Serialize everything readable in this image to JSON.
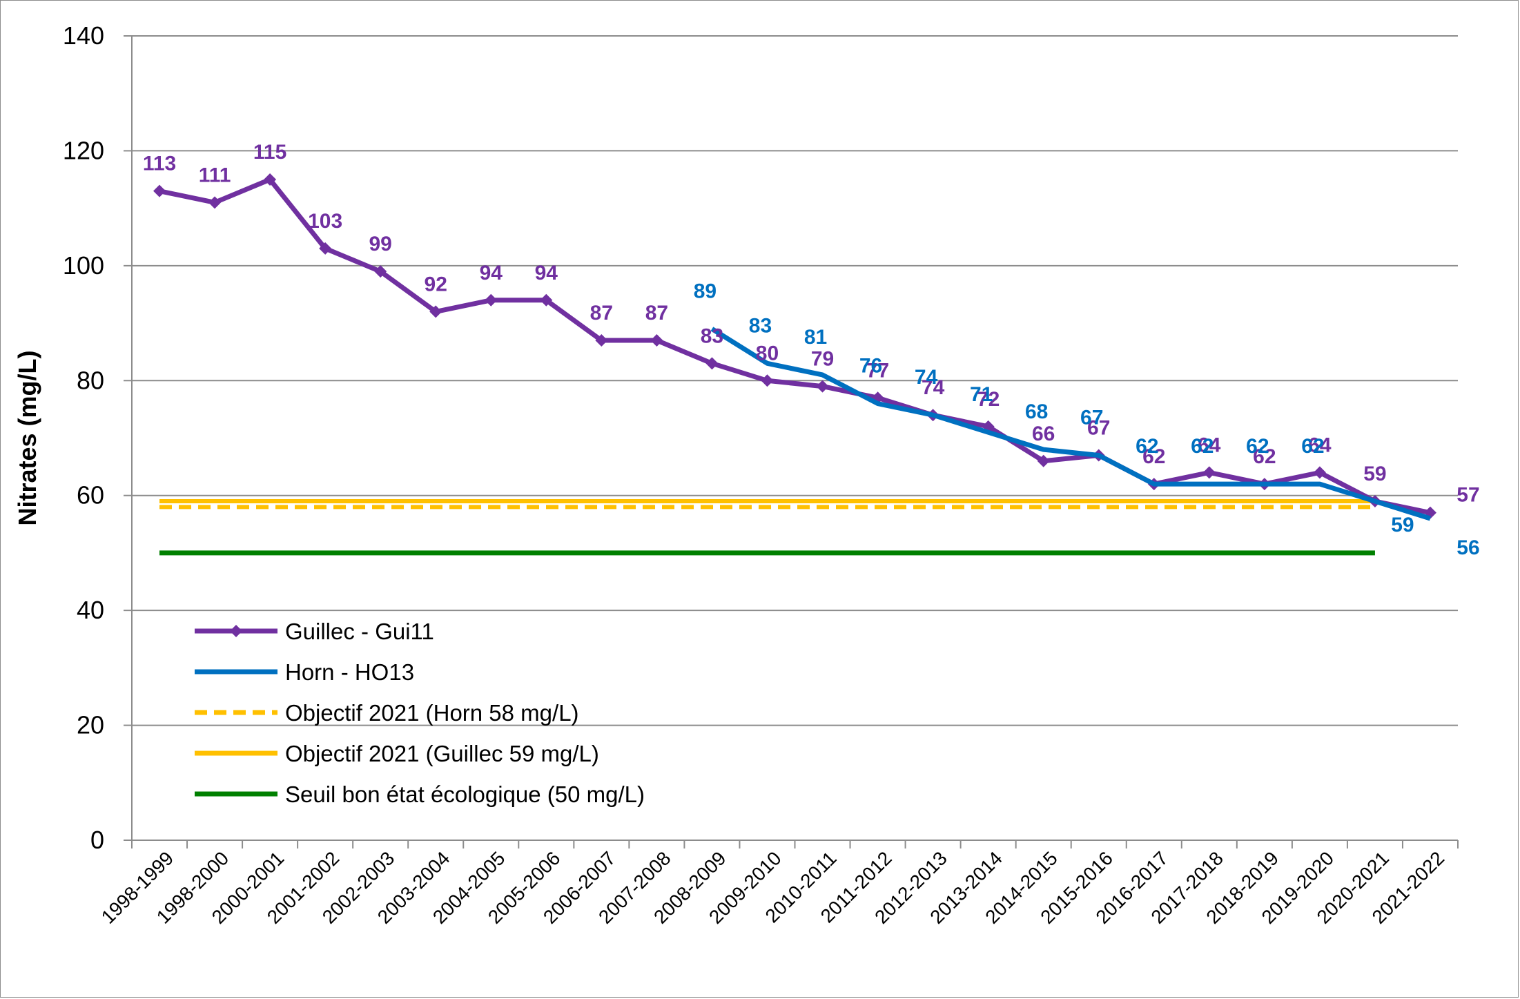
{
  "chart_data": {
    "type": "line",
    "ylabel": "Nitrates (mg/L)",
    "xlabel": "",
    "ylim": [
      0,
      140
    ],
    "yticks": [
      0,
      20,
      40,
      60,
      80,
      100,
      120,
      140
    ],
    "grid": true,
    "legend_position": "bottom-left",
    "categories": [
      "1998-1999",
      "1998-2000",
      "2000-2001",
      "2001-2002",
      "2002-2003",
      "2003-2004",
      "2004-2005",
      "2005-2006",
      "2006-2007",
      "2007-2008",
      "2008-2009",
      "2009-2010",
      "2010-2011",
      "2011-2012",
      "2012-2013",
      "2013-2014",
      "2014-2015",
      "2015-2016",
      "2016-2017",
      "2017-2018",
      "2018-2019",
      "2019-2020",
      "2020-2021",
      "2021-2022"
    ],
    "series": [
      {
        "name": "Guillec - Gui11",
        "color": "#7030a0",
        "style": "solid-markers",
        "values": [
          113,
          111,
          115,
          103,
          99,
          92,
          94,
          94,
          87,
          87,
          83,
          80,
          79,
          77,
          74,
          72,
          66,
          67,
          62,
          64,
          62,
          64,
          59,
          57
        ],
        "labels": [
          "113",
          "111",
          "115",
          "103",
          "99",
          "92",
          "94",
          "94",
          "87",
          "87",
          "83",
          "80",
          "79",
          "77",
          "74",
          "72",
          "66",
          "67",
          "62",
          "64",
          "62",
          "64",
          "59",
          "57"
        ]
      },
      {
        "name": "Horn - HO13",
        "color": "#0070c0",
        "style": "solid",
        "values": [
          null,
          null,
          null,
          null,
          null,
          null,
          null,
          null,
          null,
          null,
          89,
          83,
          81,
          76,
          74,
          71,
          68,
          67,
          62,
          62,
          62,
          62,
          59,
          56
        ],
        "labels": [
          null,
          null,
          null,
          null,
          null,
          null,
          null,
          null,
          null,
          null,
          "89",
          "83",
          "81",
          "76",
          "74",
          "71",
          "68",
          "67",
          "62",
          "62",
          "62",
          "62",
          "59",
          "56"
        ]
      },
      {
        "name": "Objectif 2021 (Horn 58 mg/L)",
        "color": "#ffc000",
        "style": "dashed",
        "value": 58
      },
      {
        "name": "Objectif 2021 (Guillec 59 mg/L)",
        "color": "#ffc000",
        "style": "solid",
        "value": 59
      },
      {
        "name": "Seuil bon état écologique (50 mg/L)",
        "color": "#008000",
        "style": "solid",
        "value": 50
      }
    ]
  }
}
